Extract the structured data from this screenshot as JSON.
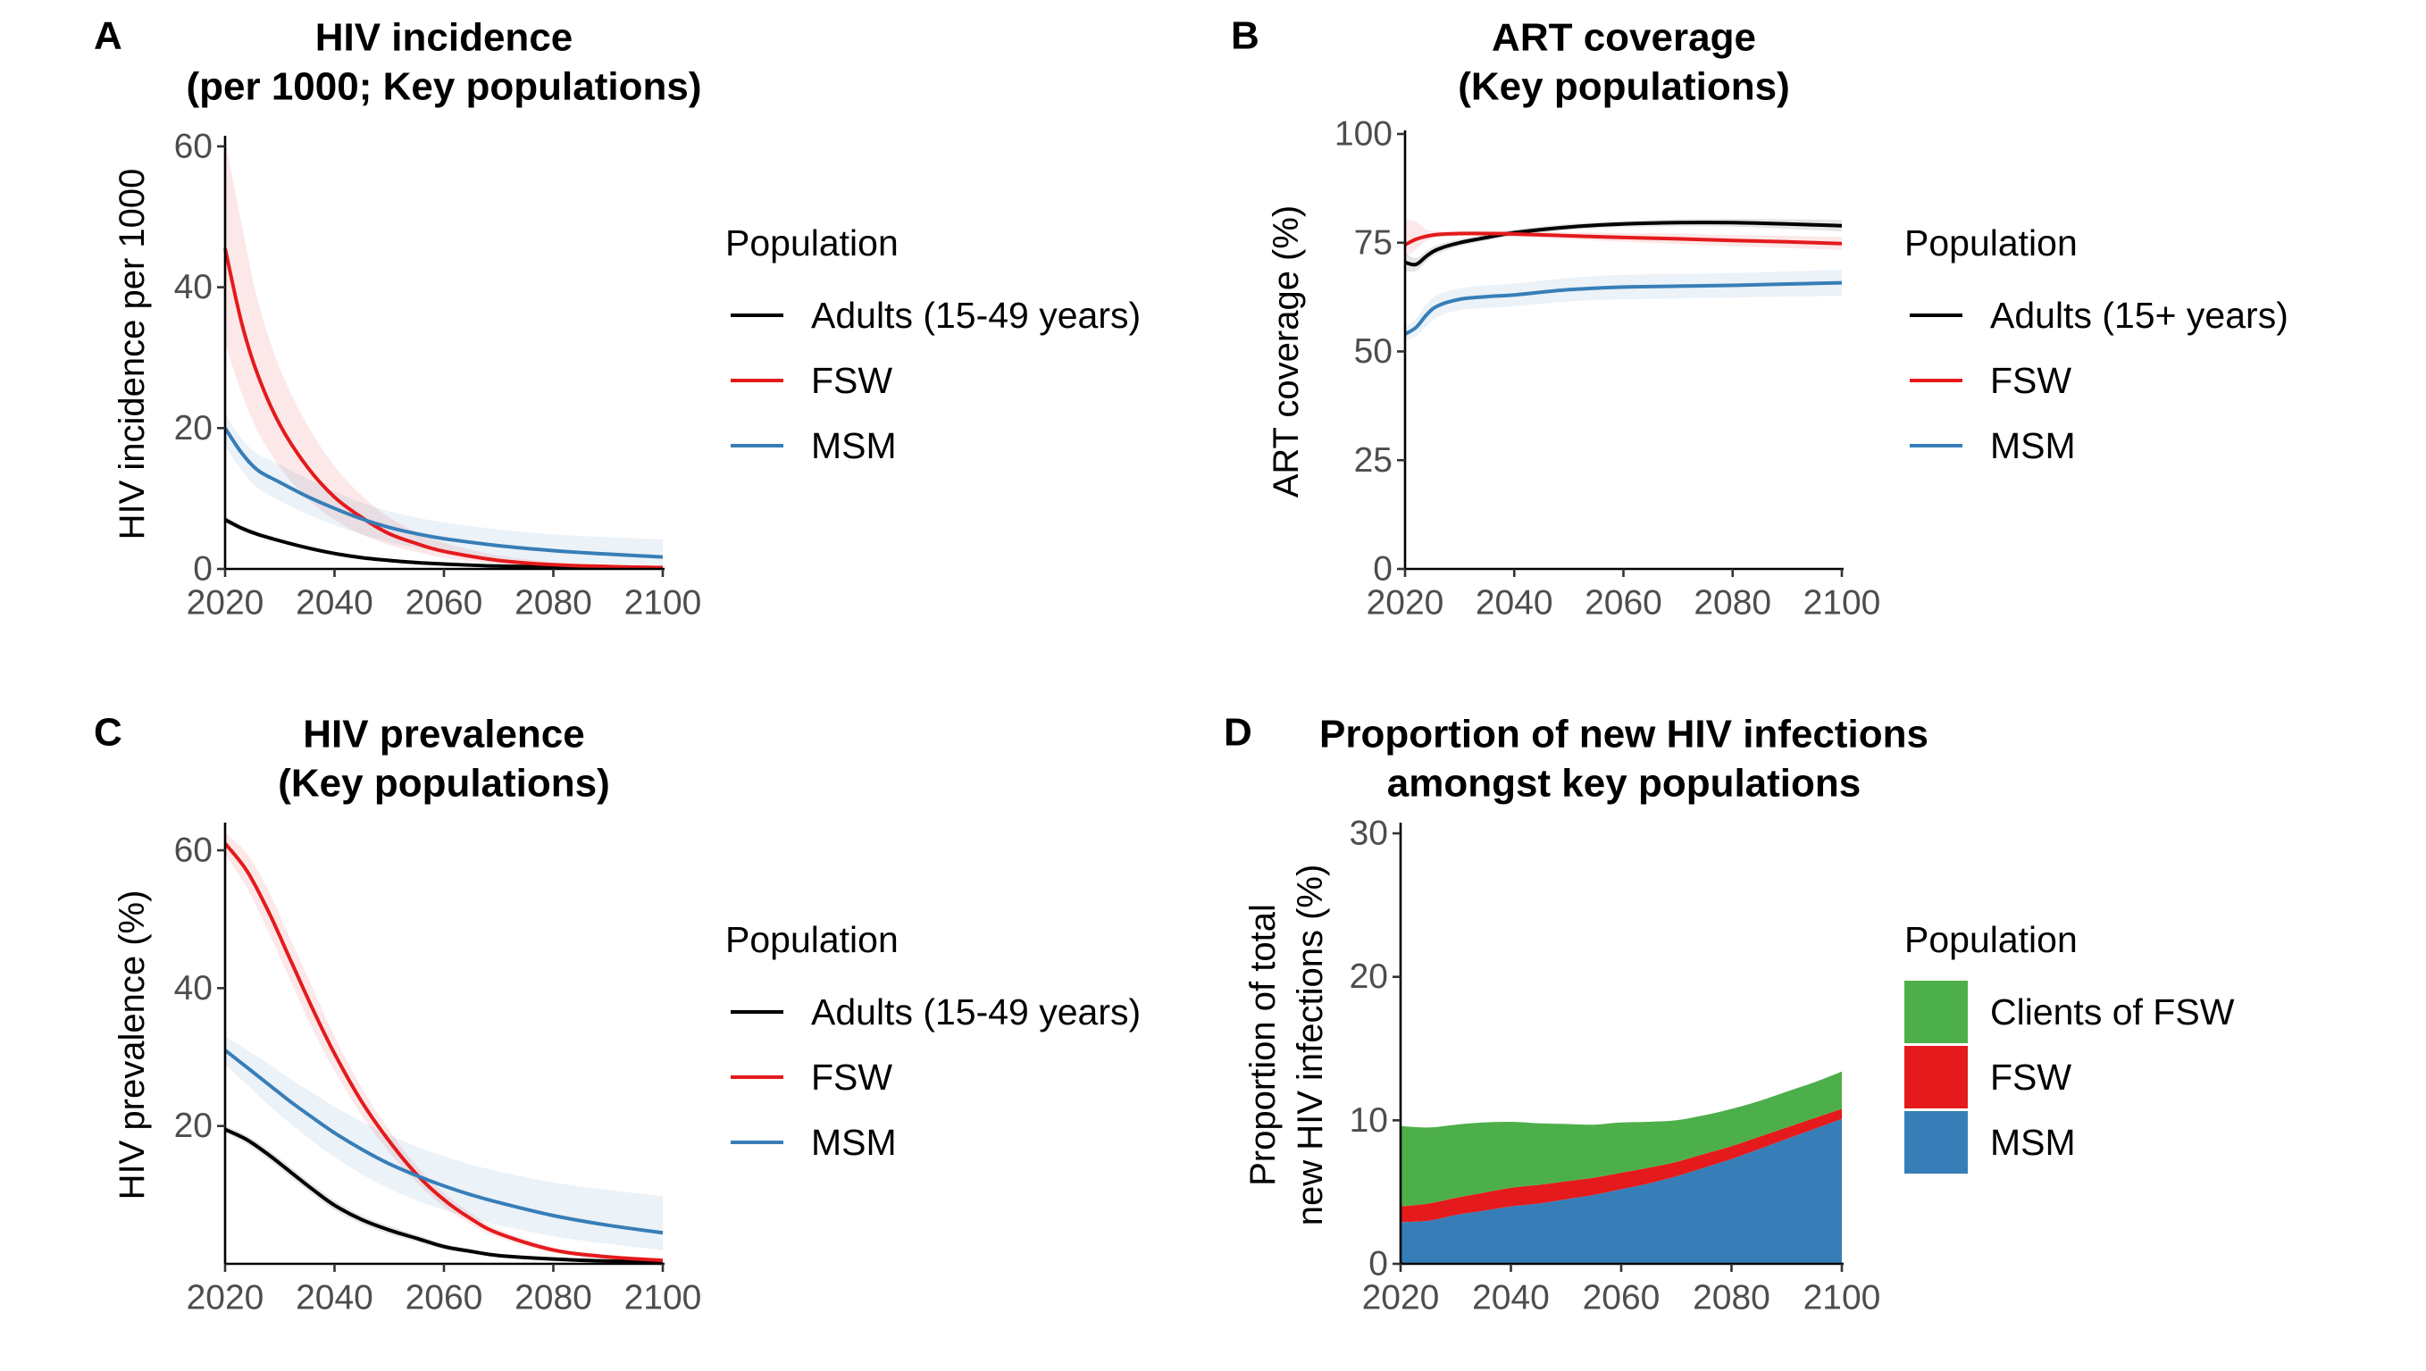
{
  "chart_data": [
    {
      "panel": "A",
      "type": "line",
      "title": "HIV incidence\n(per 1000; Key populations)",
      "xlabel": "",
      "ylabel": "HIV incidence per 1000",
      "xlim": [
        2020,
        2100
      ],
      "ylim": [
        0,
        61
      ],
      "xticks": [
        2020,
        2040,
        2060,
        2080,
        2100
      ],
      "yticks": [
        0,
        20,
        40,
        60
      ],
      "legend_title": "Population",
      "legend_position": "right",
      "x": [
        2020,
        2023,
        2026,
        2030,
        2035,
        2040,
        2045,
        2050,
        2055,
        2060,
        2070,
        2080,
        2090,
        2100
      ],
      "series": [
        {
          "name": "Adults (15-49 years)",
          "color": "#000000",
          "values": [
            7.0,
            5.8,
            4.9,
            4.0,
            3.0,
            2.2,
            1.6,
            1.2,
            0.9,
            0.7,
            0.4,
            0.3,
            0.2,
            0.15
          ],
          "lower": [
            6.5,
            5.4,
            4.6,
            3.7,
            2.8,
            2.0,
            1.4,
            1.0,
            0.75,
            0.55,
            0.3,
            0.2,
            0.12,
            0.1
          ],
          "upper": [
            7.5,
            6.2,
            5.3,
            4.3,
            3.3,
            2.4,
            1.8,
            1.4,
            1.05,
            0.85,
            0.5,
            0.38,
            0.28,
            0.2
          ]
        },
        {
          "name": "FSW",
          "color": "#e41a1c",
          "values": [
            45.5,
            35.0,
            27.5,
            20.5,
            14.5,
            10.2,
            7.3,
            5.0,
            3.6,
            2.5,
            1.2,
            0.6,
            0.35,
            0.2
          ],
          "lower": [
            32.0,
            25.0,
            19.5,
            14.5,
            10.0,
            7.0,
            4.9,
            3.4,
            2.4,
            1.6,
            0.7,
            0.35,
            0.2,
            0.1
          ],
          "upper": [
            61.0,
            49.0,
            38.0,
            28.5,
            20.5,
            14.6,
            10.4,
            7.3,
            5.2,
            3.7,
            1.9,
            1.0,
            0.6,
            0.35
          ]
        },
        {
          "name": "MSM",
          "color": "#377eb8",
          "values": [
            20.0,
            16.5,
            14.0,
            12.3,
            10.3,
            8.6,
            7.1,
            5.9,
            5.0,
            4.3,
            3.3,
            2.6,
            2.1,
            1.7
          ],
          "lower": [
            17.5,
            14.0,
            11.5,
            9.7,
            7.8,
            6.2,
            4.9,
            3.8,
            3.0,
            2.4,
            1.5,
            1.0,
            0.7,
            0.5
          ],
          "upper": [
            22.0,
            18.5,
            16.3,
            14.8,
            12.8,
            11.0,
            9.4,
            8.2,
            7.3,
            6.6,
            5.6,
            4.9,
            4.5,
            4.2
          ]
        }
      ]
    },
    {
      "panel": "B",
      "type": "line",
      "title": "ART coverage\n(Key populations)",
      "xlabel": "",
      "ylabel": "ART coverage (%)",
      "xlim": [
        2020,
        2100
      ],
      "ylim": [
        0,
        100
      ],
      "xticks": [
        2020,
        2040,
        2060,
        2080,
        2100
      ],
      "yticks": [
        0,
        25,
        50,
        75,
        100
      ],
      "legend_title": "Population",
      "legend_position": "right",
      "x": [
        2020,
        2022,
        2024,
        2026,
        2030,
        2035,
        2040,
        2050,
        2060,
        2070,
        2080,
        2090,
        2100
      ],
      "series": [
        {
          "name": "Adults (15+ years)",
          "color": "#000000",
          "values": [
            70.5,
            70.0,
            72.0,
            73.5,
            75.0,
            76.2,
            77.3,
            78.6,
            79.3,
            79.6,
            79.6,
            79.3,
            78.9
          ],
          "lower": [
            68.5,
            68.5,
            70.8,
            72.5,
            74.2,
            75.5,
            76.6,
            77.9,
            78.6,
            78.8,
            78.7,
            78.2,
            77.6
          ],
          "upper": [
            72.5,
            71.5,
            73.2,
            74.5,
            75.8,
            76.9,
            78.0,
            79.3,
            80.0,
            80.4,
            80.5,
            80.4,
            80.2
          ]
        },
        {
          "name": "FSW",
          "color": "#e41a1c",
          "values": [
            74.5,
            75.8,
            76.5,
            76.9,
            77.1,
            77.1,
            77.0,
            76.6,
            76.2,
            75.9,
            75.5,
            75.2,
            74.8
          ],
          "lower": [
            71.5,
            73.5,
            75.5,
            76.2,
            76.5,
            76.5,
            76.3,
            75.8,
            75.2,
            74.7,
            74.2,
            73.8,
            73.3
          ],
          "upper": [
            80.5,
            79.8,
            78.0,
            77.7,
            77.7,
            77.7,
            77.7,
            77.4,
            77.2,
            77.1,
            76.8,
            76.6,
            76.3
          ]
        },
        {
          "name": "MSM",
          "color": "#377eb8",
          "values": [
            54.0,
            55.5,
            58.5,
            60.5,
            62.0,
            62.6,
            63.0,
            64.2,
            64.8,
            65.0,
            65.2,
            65.5,
            65.8
          ],
          "lower": [
            52.5,
            53.5,
            56.0,
            58.0,
            59.5,
            60.0,
            60.4,
            61.5,
            62.0,
            62.2,
            62.4,
            62.6,
            62.8
          ],
          "upper": [
            55.5,
            57.5,
            61.0,
            63.0,
            64.5,
            65.2,
            65.6,
            66.9,
            67.6,
            67.8,
            68.0,
            68.4,
            68.8
          ]
        }
      ]
    },
    {
      "panel": "C",
      "type": "line",
      "title": "HIV prevalence\n(Key populations)",
      "xlabel": "",
      "ylabel": "HIV prevalence (%)",
      "xlim": [
        2020,
        2100
      ],
      "ylim": [
        0,
        63.5
      ],
      "xticks": [
        2020,
        2040,
        2060,
        2080,
        2100
      ],
      "yticks": [
        20,
        40,
        60
      ],
      "legend_title": "Population",
      "legend_position": "right",
      "x": [
        2020,
        2024,
        2028,
        2032,
        2036,
        2040,
        2045,
        2050,
        2055,
        2060,
        2065,
        2070,
        2080,
        2090,
        2100
      ],
      "series": [
        {
          "name": "Adults (15-49 years)",
          "color": "#000000",
          "values": [
            19.5,
            18.0,
            15.8,
            13.3,
            10.8,
            8.5,
            6.4,
            4.9,
            3.7,
            2.5,
            1.8,
            1.2,
            0.7,
            0.4,
            0.3
          ],
          "lower": [
            19.0,
            17.4,
            15.1,
            12.6,
            10.1,
            7.8,
            5.8,
            4.3,
            3.2,
            2.1,
            1.5,
            1.0,
            0.5,
            0.3,
            0.2
          ],
          "upper": [
            20.0,
            18.6,
            16.5,
            14.0,
            11.5,
            9.2,
            7.0,
            5.5,
            4.2,
            2.9,
            2.1,
            1.4,
            0.9,
            0.5,
            0.4
          ]
        },
        {
          "name": "FSW",
          "color": "#e41a1c",
          "values": [
            61.0,
            57.0,
            51.0,
            44.0,
            37.0,
            30.5,
            23.5,
            17.8,
            13.0,
            9.3,
            6.5,
            4.4,
            2.0,
            1.0,
            0.5
          ],
          "lower": [
            59.5,
            54.5,
            48.0,
            41.0,
            34.0,
            28.0,
            21.5,
            16.2,
            11.8,
            8.3,
            5.7,
            3.8,
            1.6,
            0.8,
            0.4
          ],
          "upper": [
            62.5,
            59.5,
            54.0,
            47.0,
            40.0,
            33.0,
            25.5,
            19.4,
            14.2,
            10.3,
            7.3,
            5.0,
            2.4,
            1.3,
            0.7
          ]
        },
        {
          "name": "MSM",
          "color": "#377eb8",
          "values": [
            31.0,
            28.5,
            26.0,
            23.5,
            21.2,
            19.0,
            16.6,
            14.5,
            12.8,
            11.3,
            10.0,
            8.9,
            7.0,
            5.6,
            4.5
          ],
          "lower": [
            29.0,
            26.0,
            23.0,
            20.3,
            17.8,
            15.5,
            13.0,
            10.9,
            9.2,
            7.8,
            6.6,
            5.6,
            4.0,
            2.9,
            2.0
          ],
          "upper": [
            33.0,
            31.0,
            29.0,
            26.8,
            24.8,
            22.8,
            20.6,
            18.7,
            17.0,
            15.6,
            14.4,
            13.4,
            11.8,
            10.7,
            9.8
          ]
        }
      ]
    },
    {
      "panel": "D",
      "type": "area",
      "stacked": true,
      "title": "Proportion of new HIV infections\namongst key populations",
      "xlabel": "",
      "ylabel": "Proportion of total\nnew HIV infections (%)",
      "xlim": [
        2020,
        2100
      ],
      "ylim": [
        0,
        30.5
      ],
      "xticks": [
        2020,
        2040,
        2060,
        2080,
        2100
      ],
      "yticks": [
        0,
        10,
        20,
        30
      ],
      "legend_title": "Population",
      "legend_position": "right",
      "x": [
        2020,
        2025,
        2030,
        2035,
        2040,
        2045,
        2050,
        2055,
        2060,
        2065,
        2070,
        2075,
        2080,
        2085,
        2090,
        2095,
        2100
      ],
      "series": [
        {
          "name": "MSM",
          "color": "#377eb8",
          "values": [
            2.9,
            3.0,
            3.4,
            3.7,
            4.0,
            4.2,
            4.5,
            4.8,
            5.2,
            5.6,
            6.1,
            6.7,
            7.3,
            8.0,
            8.7,
            9.4,
            10.1
          ]
        },
        {
          "name": "FSW",
          "color": "#e41a1c",
          "values": [
            1.1,
            1.2,
            1.2,
            1.25,
            1.3,
            1.3,
            1.25,
            1.2,
            1.15,
            1.1,
            1.0,
            0.95,
            0.9,
            0.85,
            0.8,
            0.75,
            0.7
          ]
        },
        {
          "name": "Clients of FSW",
          "color": "#4daf4a",
          "values": [
            5.6,
            5.3,
            5.1,
            4.9,
            4.6,
            4.3,
            4.0,
            3.7,
            3.5,
            3.2,
            2.9,
            2.7,
            2.6,
            2.5,
            2.5,
            2.5,
            2.6
          ]
        }
      ]
    }
  ]
}
